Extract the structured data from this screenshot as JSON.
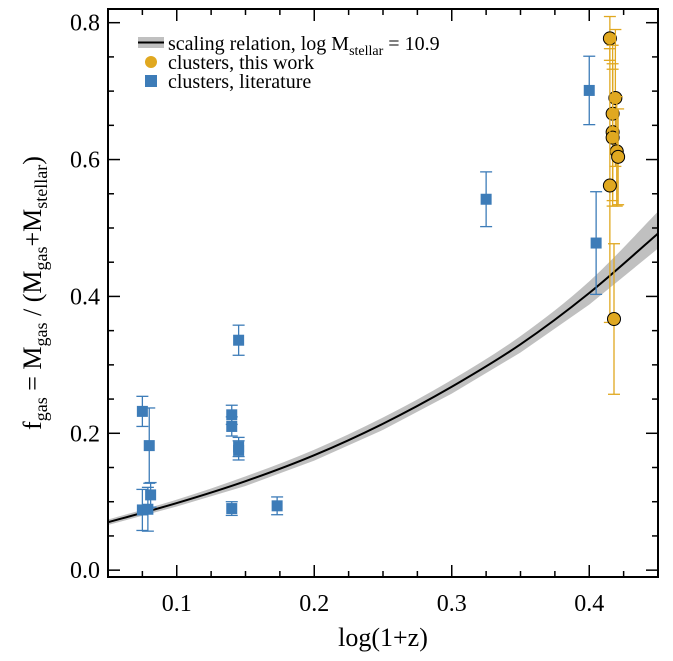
{
  "chart_data": {
    "type": "scatter",
    "xlabel": "log(1+z)",
    "ylabel_parts": {
      "base": "f",
      "sub1": "gas",
      "eq": " = M",
      "sub2": "gas",
      "mid": " / (M",
      "sub3": "gas",
      "plus": "+M",
      "sub4": "stellar",
      "close": ")"
    },
    "xlim": [
      0.05,
      0.45
    ],
    "ylim": [
      -0.01,
      0.82
    ],
    "xticks": [
      0.1,
      0.2,
      0.3,
      0.4
    ],
    "xtick_labels": [
      "0.1",
      "0.2",
      "0.3",
      "0.4"
    ],
    "yticks": [
      0.0,
      0.2,
      0.4,
      0.6,
      0.8
    ],
    "ytick_labels": [
      "0.0",
      "0.2",
      "0.4",
      "0.6",
      "0.8"
    ],
    "grid": false,
    "legend_position": "top-left",
    "legend": {
      "scaling": {
        "text": "scaling relation, log M",
        "sub": "stellar",
        "tail": " = 10.9"
      },
      "this_work": "clusters, this work",
      "literature": "clusters, literature"
    },
    "colors": {
      "this_work": "#e0a820",
      "literature": "#3d7cb8",
      "band": "#c0c0c0",
      "curve": "#000000"
    },
    "scaling_relation": {
      "name": "scaling relation, log Mstellar = 10.9",
      "x": [
        0.05,
        0.1,
        0.15,
        0.2,
        0.25,
        0.3,
        0.35,
        0.4,
        0.45
      ],
      "y": [
        0.07,
        0.098,
        0.13,
        0.168,
        0.214,
        0.268,
        0.33,
        0.405,
        0.492
      ],
      "band_low": [
        0.066,
        0.093,
        0.123,
        0.16,
        0.205,
        0.258,
        0.318,
        0.388,
        0.47
      ],
      "band_high": [
        0.074,
        0.103,
        0.137,
        0.176,
        0.223,
        0.278,
        0.342,
        0.422,
        0.524
      ]
    },
    "series": [
      {
        "name": "clusters, literature",
        "marker": "square",
        "points": [
          {
            "x": 0.075,
            "y": 0.232,
            "err": 0.022
          },
          {
            "x": 0.075,
            "y": 0.088,
            "err": 0.03
          },
          {
            "x": 0.079,
            "y": 0.089,
            "err": 0.032
          },
          {
            "x": 0.08,
            "y": 0.182,
            "err": 0.055
          },
          {
            "x": 0.081,
            "y": 0.11,
            "err": 0.018
          },
          {
            "x": 0.14,
            "y": 0.227,
            "err": 0.014
          },
          {
            "x": 0.14,
            "y": 0.21,
            "err": 0.014
          },
          {
            "x": 0.14,
            "y": 0.09,
            "err": 0.01
          },
          {
            "x": 0.145,
            "y": 0.336,
            "err": 0.022
          },
          {
            "x": 0.145,
            "y": 0.18,
            "err": 0.014
          },
          {
            "x": 0.145,
            "y": 0.175,
            "err": 0.014
          },
          {
            "x": 0.173,
            "y": 0.094,
            "err": 0.013
          },
          {
            "x": 0.325,
            "y": 0.542,
            "err": 0.04
          },
          {
            "x": 0.4,
            "y": 0.701,
            "err": 0.05
          },
          {
            "x": 0.405,
            "y": 0.478,
            "err": 0.075
          }
        ]
      },
      {
        "name": "clusters, this work",
        "marker": "circle",
        "points": [
          {
            "x": 0.415,
            "y": 0.777,
            "err": 0.032
          },
          {
            "x": 0.419,
            "y": 0.69,
            "err": 0.1
          },
          {
            "x": 0.417,
            "y": 0.667,
            "err": 0.1
          },
          {
            "x": 0.417,
            "y": 0.64,
            "err": 0.1
          },
          {
            "x": 0.417,
            "y": 0.632,
            "err": 0.1
          },
          {
            "x": 0.42,
            "y": 0.612,
            "err": 0.08
          },
          {
            "x": 0.421,
            "y": 0.604,
            "err": 0.07
          },
          {
            "x": 0.415,
            "y": 0.562,
            "err": 0.2
          },
          {
            "x": 0.418,
            "y": 0.367,
            "err": 0.11
          }
        ]
      }
    ]
  }
}
